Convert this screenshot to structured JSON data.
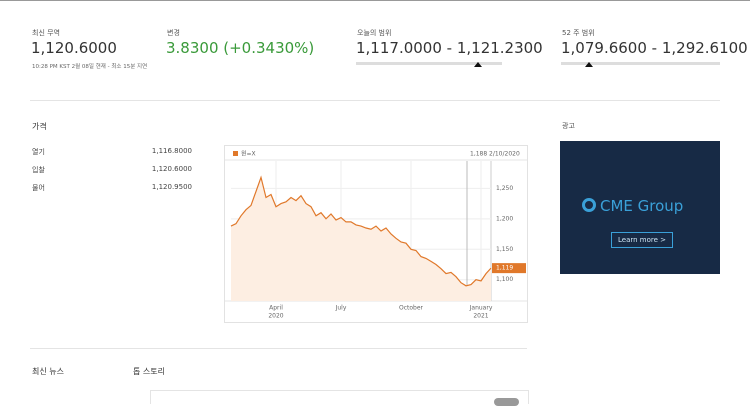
{
  "stats": [
    {
      "label": "최신 무역",
      "value": "1,120.6000",
      "note": "10:28 PM KST 2월 08일 현재 - 최소 15분 지연"
    },
    {
      "label": "변경",
      "value": "3.8300 (+0.3430%)"
    },
    {
      "label": "오늘의 범위",
      "value": "1,117.0000 - 1,121.2300"
    },
    {
      "label": "52 주 범위",
      "value": "1,079.6600 - 1,292.6100"
    }
  ],
  "price_section": {
    "title": "가격",
    "rows": [
      [
        "열기",
        "1,116.8000"
      ],
      [
        "입찰",
        "1,120.6000"
      ],
      [
        "물어",
        "1,120.9500"
      ]
    ]
  },
  "chart": {
    "type": "line",
    "legend": "원=X",
    "hover_value": "1,188",
    "hover_date": "2/10/2020",
    "color": "#e0782a",
    "values": [
      1188,
      1192,
      1205,
      1215,
      1222,
      1245,
      1268,
      1235,
      1240,
      1220,
      1225,
      1228,
      1235,
      1230,
      1238,
      1225,
      1220,
      1205,
      1210,
      1200,
      1208,
      1198,
      1202,
      1195,
      1195,
      1190,
      1188,
      1185,
      1183,
      1188,
      1180,
      1185,
      1175,
      1168,
      1162,
      1160,
      1150,
      1148,
      1138,
      1135,
      1130,
      1125,
      1118,
      1110,
      1112,
      1105,
      1095,
      1090,
      1092,
      1100,
      1098,
      1110,
      1119
    ],
    "last_label": "1,119",
    "xlim": [
      0,
      52
    ],
    "xticks": [
      {
        "value": 9,
        "label": "April"
      },
      {
        "value": 22,
        "label": "July"
      },
      {
        "value": 36,
        "label": "October"
      },
      {
        "value": 50,
        "label": "January"
      }
    ],
    "xtick_years": [
      {
        "value": 9,
        "label": "2020"
      },
      {
        "value": 50,
        "label": "2021"
      }
    ],
    "ylim": [
      1065,
      1295
    ],
    "yticks": [
      {
        "value": 1250,
        "label": "1,250"
      },
      {
        "value": 1200,
        "label": "1,200"
      },
      {
        "value": 1150,
        "label": "1,150"
      },
      {
        "value": 1100,
        "label": "1,100"
      }
    ]
  },
  "ad": {
    "label": "광고",
    "brand": "CME Group",
    "button": "Learn more >"
  },
  "news": {
    "latest": "최신 뉴스",
    "top": "톱 스토리"
  }
}
